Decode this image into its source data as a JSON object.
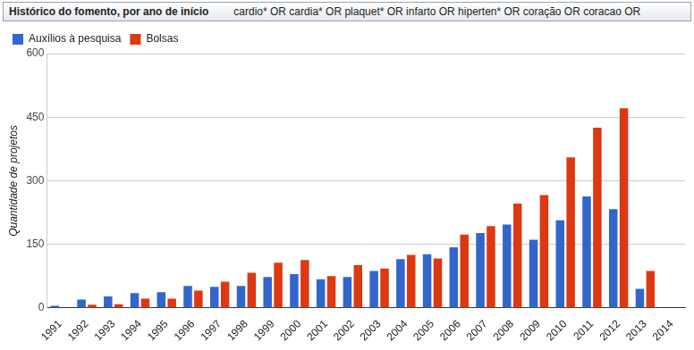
{
  "chart_data": {
    "type": "bar",
    "title": "Histórico do fomento, por ano de início",
    "subtitle": "cardio* OR cardia* OR plaquet* OR infarto OR hiperten* OR coração OR coracao OR",
    "y_label": "Quantidade de projetos",
    "categories": [
      "1991",
      "1992",
      "1993",
      "1994",
      "1995",
      "1996",
      "1997",
      "1998",
      "1999",
      "2000",
      "2001",
      "2002",
      "2003",
      "2004",
      "2005",
      "2006",
      "2007",
      "2008",
      "2009",
      "2010",
      "2011",
      "2012",
      "2013",
      "2014"
    ],
    "series": [
      {
        "name": "Auxílios à pesquisa",
        "color": "#3366cc",
        "values": [
          5,
          20,
          27,
          35,
          37,
          52,
          50,
          52,
          73,
          80,
          68,
          73,
          87,
          115,
          127,
          143,
          177,
          197,
          161,
          207,
          263,
          233,
          45,
          0
        ]
      },
      {
        "name": "Bolsas",
        "color": "#dc3912",
        "values": [
          0,
          8,
          9,
          22,
          22,
          41,
          62,
          83,
          107,
          113,
          75,
          101,
          93,
          125,
          117,
          173,
          193,
          246,
          266,
          355,
          425,
          471,
          87,
          0
        ]
      }
    ],
    "ylim": [
      0,
      600
    ],
    "yticks": [
      0,
      150,
      300,
      450,
      600
    ],
    "grid": true,
    "legend": "upper left"
  }
}
